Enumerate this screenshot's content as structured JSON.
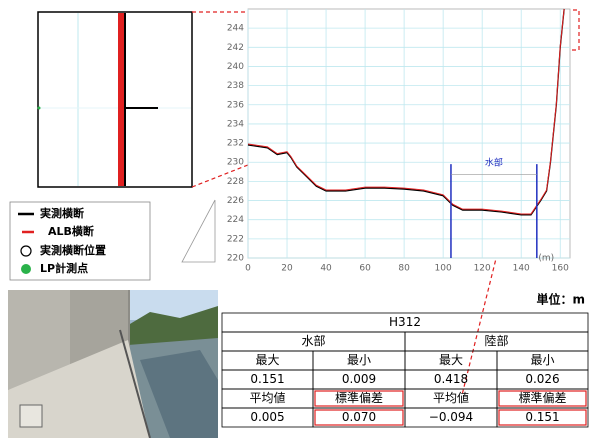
{
  "chart_data": {
    "type": "line",
    "x": [
      0,
      10,
      15,
      20,
      22,
      25,
      30,
      35,
      40,
      50,
      60,
      70,
      80,
      90,
      100,
      105,
      110,
      120,
      130,
      140,
      145,
      150,
      153,
      155,
      158,
      160,
      162
    ],
    "series": [
      {
        "name": "実測横断",
        "color": "#000000",
        "values": [
          231.8,
          231.5,
          230.8,
          231.0,
          230.5,
          229.5,
          228.5,
          227.5,
          227.0,
          227.0,
          227.3,
          227.3,
          227.2,
          227.0,
          226.5,
          225.5,
          225.0,
          225.0,
          224.8,
          224.5,
          224.5,
          226.0,
          227.0,
          230.0,
          236.0,
          242.0,
          246.0
        ]
      },
      {
        "name": "ALB横断",
        "color": "#e02020",
        "values": [
          231.9,
          231.6,
          230.9,
          231.1,
          230.6,
          229.6,
          228.6,
          227.6,
          227.1,
          227.1,
          227.4,
          227.4,
          227.3,
          227.1,
          226.6,
          225.6,
          225.1,
          225.1,
          224.9,
          224.6,
          224.6,
          226.1,
          227.1,
          230.1,
          236.1,
          242.1,
          246.0
        ]
      }
    ],
    "legend_markers": [
      "実測横断位置",
      "LP計測点"
    ],
    "x_unit": "(m)",
    "xlim": [
      0,
      165
    ],
    "xticks": [
      0,
      20,
      40,
      60,
      80,
      100,
      120,
      140,
      160
    ],
    "ylim": [
      220,
      246
    ],
    "yticks": [
      220,
      222,
      224,
      226,
      228,
      230,
      232,
      234,
      236,
      238,
      240,
      242,
      244
    ],
    "grid": true,
    "annotation": {
      "text": "水部",
      "x_start": 104,
      "x_end": 148,
      "y": 228.7,
      "y_top": 229.8
    }
  },
  "unit": "単位：m",
  "table": {
    "title": "H312",
    "groups": [
      "水部",
      "陸部"
    ],
    "rows": [
      [
        "最大",
        "最小",
        "最大",
        "最小"
      ],
      [
        "0.151",
        "0.009",
        "0.418",
        "0.026"
      ],
      [
        "平均値",
        "標準偏差",
        "平均値",
        "標準偏差"
      ],
      [
        "0.005",
        "0.070",
        "−0.094",
        "0.151"
      ]
    ]
  }
}
